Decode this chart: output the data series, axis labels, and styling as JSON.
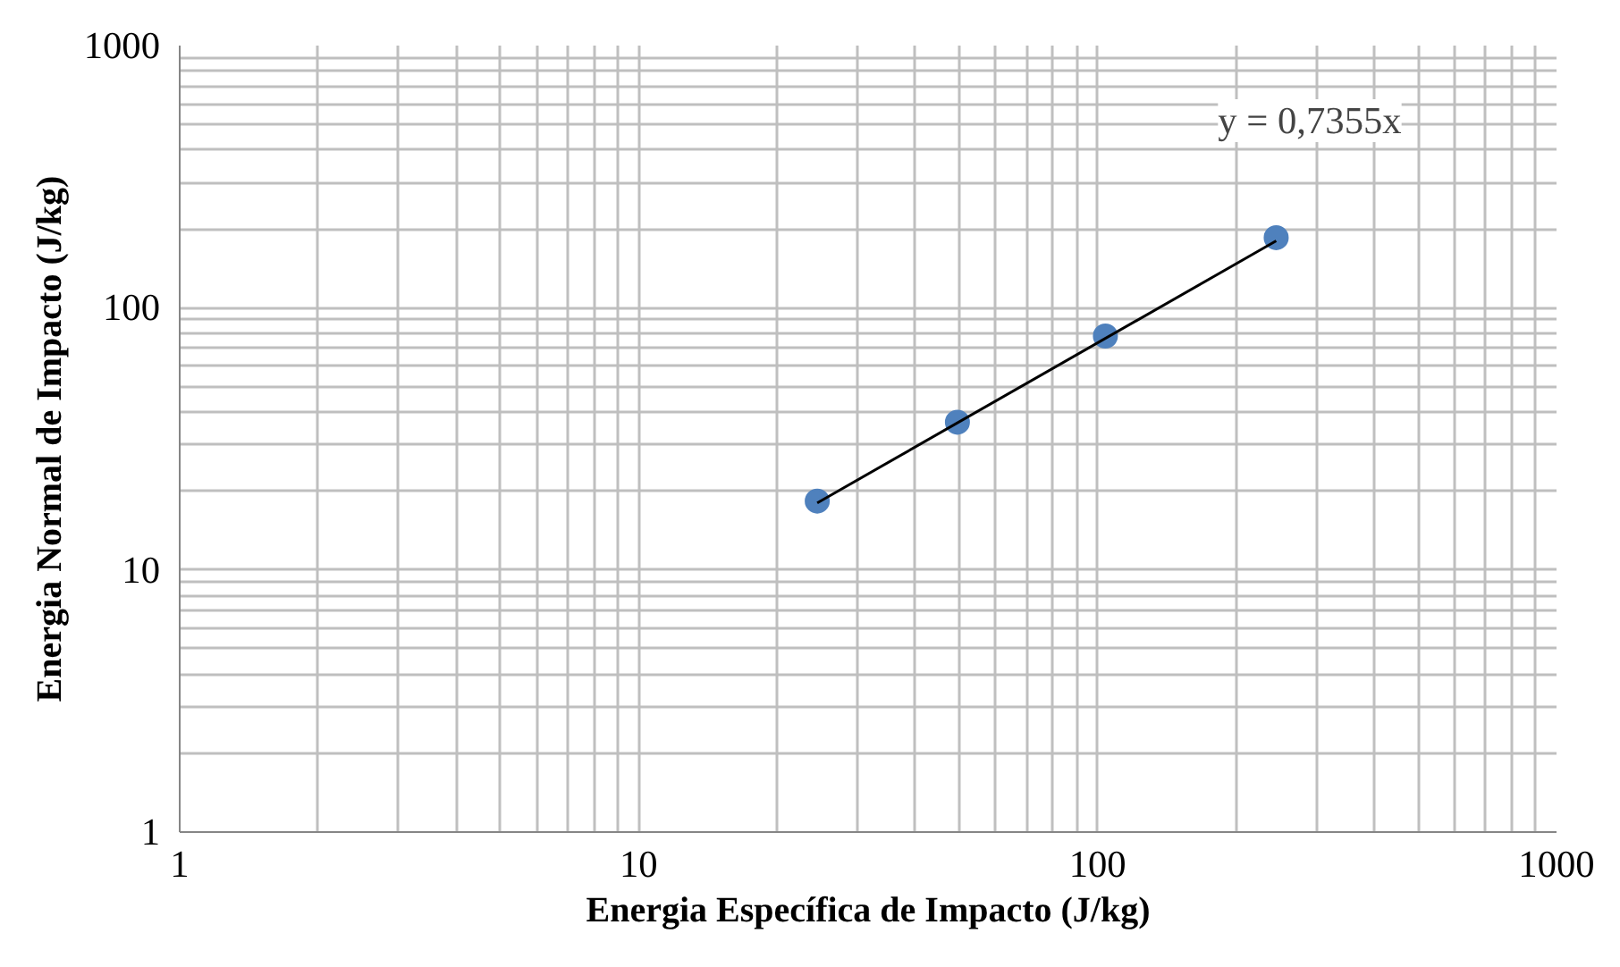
{
  "chart_data": {
    "type": "scatter",
    "xlabel": "Energia Específica de Impacto (J/kg)",
    "ylabel": "Energia Normal de Impacto (J/kg)",
    "log": "xy",
    "grid": true,
    "marker": "circle",
    "xlim": [
      1,
      1000
    ],
    "ylim": [
      1,
      1000
    ],
    "xticks": [
      1,
      {
        "value": 2,
        "label": null
      },
      {
        "value": 3,
        "label": null
      },
      {
        "value": 4,
        "label": null
      },
      {
        "value": 5,
        "label": null
      },
      {
        "value": 6,
        "label": null
      },
      {
        "value": 7,
        "label": null
      },
      {
        "value": 8,
        "label": null
      },
      {
        "value": 9,
        "label": null
      },
      10,
      {
        "value": 20,
        "label": null
      },
      {
        "value": 30,
        "label": null
      },
      {
        "value": 40,
        "label": null
      },
      {
        "value": 50,
        "label": null
      },
      {
        "value": 60,
        "label": null
      },
      {
        "value": 70,
        "label": null
      },
      {
        "value": 80,
        "label": null
      },
      {
        "value": 90,
        "label": null
      },
      100,
      {
        "value": 200,
        "label": null
      },
      {
        "value": 300,
        "label": null
      },
      {
        "value": 400,
        "label": null
      },
      {
        "value": 500,
        "label": null
      },
      {
        "value": 600,
        "label": null
      },
      {
        "value": 700,
        "label": null
      },
      {
        "value": 800,
        "label": null
      },
      {
        "value": 900,
        "label": null
      },
      1000
    ],
    "yticks": [
      1,
      {
        "value": 2,
        "label": null
      },
      {
        "value": 3,
        "label": null
      },
      {
        "value": 4,
        "label": null
      },
      {
        "value": 5,
        "label": null
      },
      {
        "value": 6,
        "label": null
      },
      {
        "value": 7,
        "label": null
      },
      {
        "value": 8,
        "label": null
      },
      {
        "value": 9,
        "label": null
      },
      10,
      {
        "value": 20,
        "label": null
      },
      {
        "value": 30,
        "label": null
      },
      {
        "value": 40,
        "label": null
      },
      {
        "value": 50,
        "label": null
      },
      {
        "value": 60,
        "label": null
      },
      {
        "value": 70,
        "label": null
      },
      {
        "value": 80,
        "label": null
      },
      {
        "value": 90,
        "label": null
      },
      100,
      {
        "value": 200,
        "label": null
      },
      {
        "value": 300,
        "label": null
      },
      {
        "value": 400,
        "label": null
      },
      {
        "value": 500,
        "label": null
      },
      {
        "value": 600,
        "label": null
      },
      {
        "value": 700,
        "label": null
      },
      {
        "value": 800,
        "label": null
      },
      {
        "value": 900,
        "label": null
      },
      1000
    ],
    "series": [
      {
        "color": "#4f81bd",
        "x": [
          24.5,
          49.5,
          104,
          245
        ],
        "values": [
          18.3,
          36.6,
          78,
          185
        ]
      },
      {
        "type": "line",
        "color": "#000000",
        "marker": "none",
        "x": [
          24.5,
          245
        ],
        "values": [
          18.0,
          180
        ]
      }
    ],
    "annotations": [
      "y = 0,7355x"
    ]
  }
}
